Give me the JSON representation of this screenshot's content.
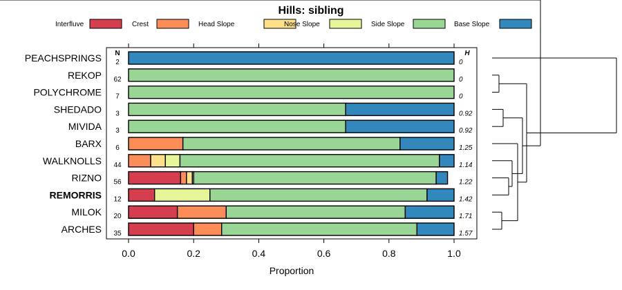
{
  "chart_data": {
    "type": "bar",
    "stacked": true,
    "orientation": "horizontal",
    "title": "Hills: sibling",
    "xlabel": "Proportion",
    "xlim": [
      0,
      1
    ],
    "xticks": [
      "0.0",
      "0.2",
      "0.4",
      "0.6",
      "0.8",
      "1.0"
    ],
    "n_header": "N",
    "h_header": "H",
    "legend": [
      {
        "name": "Interfluve",
        "color": "#d53e4f"
      },
      {
        "name": "Crest",
        "color": "#fc8d59"
      },
      {
        "name": "Head Slope",
        "color": "#fee08b"
      },
      {
        "name": "Nose Slope",
        "color": "#e6f598"
      },
      {
        "name": "Side Slope",
        "color": "#99d594"
      },
      {
        "name": "Base Slope",
        "color": "#3288bd"
      }
    ],
    "categories": [
      "PEACHSPRINGS",
      "REKOP",
      "POLYCHROME",
      "SHEDADO",
      "MIVIDA",
      "BARX",
      "WALKNOLLS",
      "RIZNO",
      "REMORRIS",
      "MILOK",
      "ARCHES"
    ],
    "highlight": "REMORRIS",
    "n": [
      "2",
      "62",
      "7",
      "3",
      "3",
      "6",
      "44",
      "56",
      "12",
      "20",
      "35"
    ],
    "h": [
      "0",
      "0",
      "0",
      "0.92",
      "0.92",
      "1.25",
      "1.14",
      "1.22",
      "1.42",
      "1.71",
      "1.57"
    ],
    "series": [
      {
        "name": "Interfluve",
        "values": [
          0,
          0,
          0,
          0,
          0,
          0,
          0,
          0.16,
          0.08,
          0.15,
          0.2
        ]
      },
      {
        "name": "Crest",
        "values": [
          0,
          0,
          0,
          0,
          0,
          0.167,
          0.068,
          0.018,
          0,
          0.15,
          0.086
        ]
      },
      {
        "name": "Head Slope",
        "values": [
          0,
          0,
          0,
          0,
          0,
          0,
          0.045,
          0.018,
          0,
          0,
          0
        ]
      },
      {
        "name": "Nose Slope",
        "values": [
          0,
          0,
          0,
          0,
          0,
          0,
          0.045,
          0.004,
          0.17,
          0,
          0
        ]
      },
      {
        "name": "Side Slope",
        "values": [
          0,
          1.0,
          1.0,
          0.667,
          0.667,
          0.667,
          0.797,
          0.745,
          0.667,
          0.55,
          0.6
        ]
      },
      {
        "name": "Base Slope",
        "values": [
          1.0,
          0,
          0,
          0.333,
          0.333,
          0.166,
          0.045,
          0.035,
          0.083,
          0.15,
          0.114
        ]
      }
    ],
    "dendrogram": [
      [
        1,
        2
      ],
      [
        3,
        4
      ],
      [
        7,
        8
      ],
      [
        9,
        10
      ],
      [
        6,
        13
      ],
      [
        5,
        14
      ],
      [
        15,
        12
      ],
      [
        16,
        11
      ],
      [
        17,
        19
      ],
      [
        0,
        18
      ]
    ]
  }
}
